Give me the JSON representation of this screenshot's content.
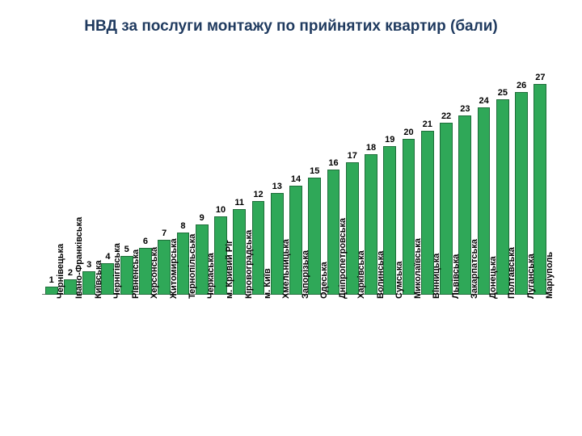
{
  "title": {
    "text": "НВД за послуги монтажу по прийнятих квартир (бали)",
    "color": "#1f3a5f",
    "fontsize": 19
  },
  "chart": {
    "type": "bar",
    "ylim": [
      0,
      30
    ],
    "bar_width_ratio": 0.68,
    "bar_color": "#2fa858",
    "bar_border_color": "#1e6e3a",
    "value_label_color": "#000000",
    "value_label_fontsize": 11,
    "axis_label_color": "#000000",
    "axis_label_fontsize": 11,
    "baseline_color": "#777777",
    "background_color": "#ffffff",
    "categories": [
      "Чернівецька",
      "Івано-Франківська",
      "Київська",
      "Чернігівська",
      "Рівненська",
      "Херсонська",
      "Житомирська",
      "Тернопільська",
      "Черкаська",
      "м. Кривий Ріг",
      "Кіровоградська",
      "м. Київ",
      "Хмельницька",
      "Запорізька",
      "Одеська",
      "Дніпропетровська",
      "Харківська",
      "Волинська",
      "Сумська",
      "Миколаївська",
      "Вінницька",
      "Львівська",
      "Закарпатська",
      "Донецька",
      "Полтавська",
      "Луганська",
      "Маріуполь"
    ],
    "values": [
      1,
      2,
      3,
      4,
      5,
      6,
      7,
      8,
      9,
      10,
      11,
      12,
      13,
      14,
      15,
      16,
      17,
      18,
      19,
      20,
      21,
      22,
      23,
      24,
      25,
      26,
      27
    ]
  }
}
